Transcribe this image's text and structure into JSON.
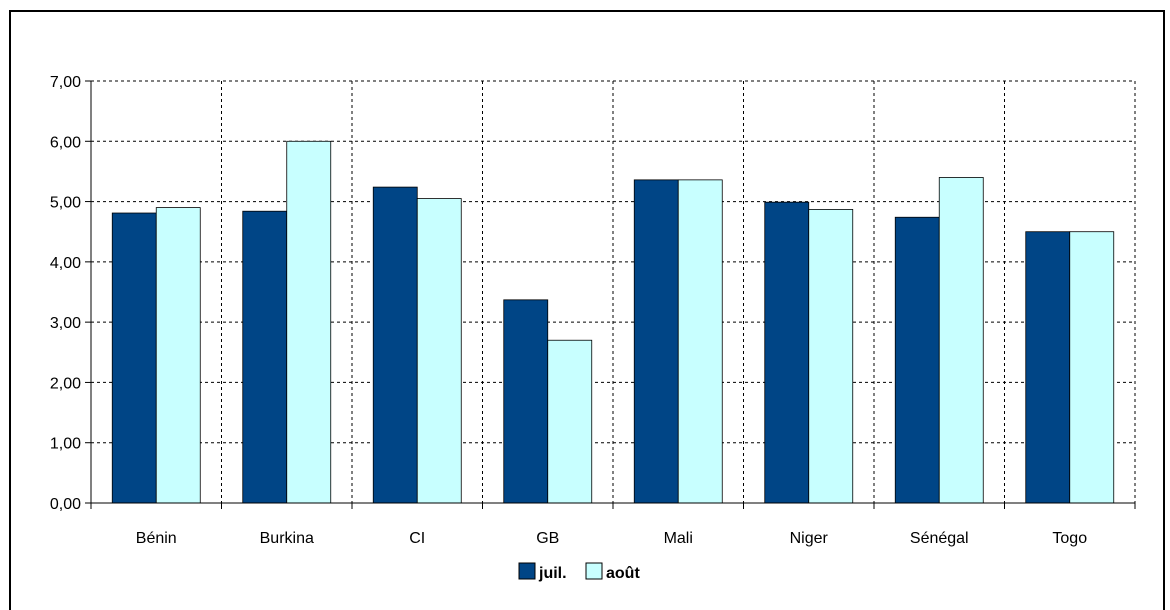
{
  "chart_data": {
    "type": "bar",
    "categories": [
      "Bénin",
      "Burkina",
      "CI",
      "GB",
      "Mali",
      "Niger",
      "Sénégal",
      "Togo"
    ],
    "series": [
      {
        "name": "juil.",
        "color": "#004586",
        "values": [
          4.81,
          4.84,
          5.24,
          3.37,
          5.36,
          4.99,
          4.74,
          4.5
        ]
      },
      {
        "name": "août",
        "color": "#c8ffff",
        "values": [
          4.9,
          6.0,
          5.05,
          2.7,
          5.36,
          4.87,
          5.4,
          4.5
        ]
      }
    ],
    "yticks": [
      "0,00",
      "1,00",
      "2,00",
      "3,00",
      "4,00",
      "5,00",
      "6,00",
      "7,00"
    ],
    "ylim": [
      0,
      7
    ],
    "grid": true,
    "legend_position": "bottom"
  }
}
